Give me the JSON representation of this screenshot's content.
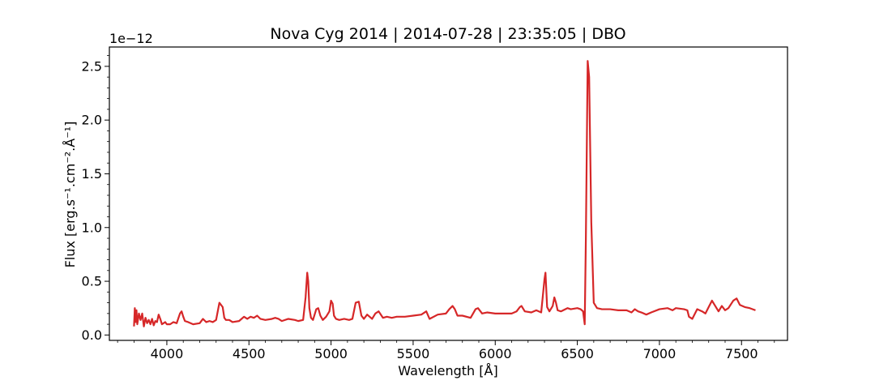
{
  "chart_data": {
    "type": "line",
    "title": "Nova Cyg 2014 | 2014-07-28 | 23:35:05 | DBO",
    "xlabel": "Wavelength [Å]",
    "ylabel": "Flux [erg.s⁻¹.cm⁻².Å⁻¹]",
    "y_offset_text": "1e−12",
    "xlim": [
      3650,
      7780
    ],
    "ylim": [
      -0.05,
      2.68
    ],
    "xticks": [
      4000,
      4500,
      5000,
      5500,
      6000,
      6500,
      7000,
      7500
    ],
    "xtick_labels": [
      "4000",
      "4500",
      "5000",
      "5500",
      "6000",
      "6500",
      "7000",
      "7500"
    ],
    "yticks": [
      0.0,
      0.5,
      1.0,
      1.5,
      2.0,
      2.5
    ],
    "ytick_labels": [
      "0.0",
      "0.5",
      "1.0",
      "1.5",
      "2.0",
      "2.5"
    ],
    "grid": false,
    "color": "#d62728",
    "series": [
      {
        "x": [
          3800,
          3805,
          3810,
          3815,
          3820,
          3830,
          3840,
          3850,
          3860,
          3870,
          3880,
          3890,
          3900,
          3910,
          3920,
          3930,
          3940,
          3950,
          3960,
          3970,
          3980,
          3990,
          4000,
          4020,
          4040,
          4060,
          4080,
          4090,
          4100,
          4110,
          4130,
          4160,
          4200,
          4220,
          4240,
          4260,
          4280,
          4300,
          4320,
          4340,
          4350,
          4360,
          4380,
          4400,
          4440,
          4470,
          4490,
          4510,
          4530,
          4550,
          4570,
          4600,
          4640,
          4660,
          4680,
          4700,
          4740,
          4780,
          4800,
          4830,
          4845,
          4855,
          4861,
          4868,
          4878,
          4890,
          4910,
          4922,
          4935,
          4950,
          4970,
          4990,
          5000,
          5010,
          5018,
          5030,
          5050,
          5080,
          5110,
          5130,
          5150,
          5169,
          5185,
          5200,
          5220,
          5250,
          5270,
          5290,
          5316,
          5340,
          5370,
          5400,
          5450,
          5500,
          5550,
          5580,
          5600,
          5650,
          5700,
          5720,
          5740,
          5754,
          5770,
          5800,
          5850,
          5880,
          5895,
          5920,
          5950,
          6000,
          6050,
          6100,
          6130,
          6150,
          6160,
          6180,
          6220,
          6250,
          6280,
          6300,
          6306,
          6316,
          6330,
          6350,
          6360,
          6370,
          6380,
          6400,
          6440,
          6460,
          6500,
          6520,
          6535,
          6545,
          6552,
          6563,
          6572,
          6585,
          6600,
          6620,
          6650,
          6700,
          6750,
          6800,
          6830,
          6850,
          6870,
          6890,
          6920,
          6950,
          7000,
          7050,
          7080,
          7100,
          7150,
          7170,
          7180,
          7200,
          7230,
          7260,
          7280,
          7300,
          7320,
          7340,
          7360,
          7380,
          7400,
          7420,
          7450,
          7470,
          7490,
          7520,
          7550,
          7585
        ],
        "y": [
          0.08,
          0.25,
          0.12,
          0.23,
          0.1,
          0.2,
          0.14,
          0.2,
          0.08,
          0.16,
          0.11,
          0.14,
          0.1,
          0.15,
          0.09,
          0.13,
          0.12,
          0.19,
          0.15,
          0.1,
          0.11,
          0.12,
          0.1,
          0.1,
          0.12,
          0.11,
          0.2,
          0.22,
          0.17,
          0.13,
          0.12,
          0.1,
          0.11,
          0.15,
          0.12,
          0.13,
          0.12,
          0.14,
          0.3,
          0.26,
          0.16,
          0.14,
          0.14,
          0.12,
          0.13,
          0.17,
          0.15,
          0.17,
          0.16,
          0.18,
          0.15,
          0.14,
          0.15,
          0.16,
          0.15,
          0.13,
          0.15,
          0.14,
          0.13,
          0.14,
          0.35,
          0.58,
          0.5,
          0.25,
          0.16,
          0.14,
          0.24,
          0.25,
          0.18,
          0.14,
          0.17,
          0.22,
          0.32,
          0.29,
          0.18,
          0.15,
          0.14,
          0.15,
          0.14,
          0.15,
          0.3,
          0.31,
          0.18,
          0.15,
          0.19,
          0.15,
          0.2,
          0.22,
          0.16,
          0.17,
          0.16,
          0.17,
          0.17,
          0.18,
          0.19,
          0.22,
          0.15,
          0.19,
          0.2,
          0.24,
          0.27,
          0.24,
          0.18,
          0.18,
          0.16,
          0.24,
          0.25,
          0.2,
          0.21,
          0.2,
          0.2,
          0.2,
          0.22,
          0.26,
          0.27,
          0.22,
          0.21,
          0.23,
          0.21,
          0.52,
          0.58,
          0.26,
          0.22,
          0.27,
          0.35,
          0.3,
          0.23,
          0.22,
          0.25,
          0.24,
          0.25,
          0.24,
          0.22,
          0.1,
          0.9,
          2.55,
          2.4,
          1.05,
          0.3,
          0.25,
          0.24,
          0.24,
          0.23,
          0.23,
          0.21,
          0.24,
          0.22,
          0.21,
          0.19,
          0.21,
          0.24,
          0.25,
          0.23,
          0.25,
          0.24,
          0.23,
          0.17,
          0.15,
          0.24,
          0.22,
          0.2,
          0.26,
          0.32,
          0.27,
          0.22,
          0.27,
          0.23,
          0.25,
          0.32,
          0.34,
          0.28,
          0.26,
          0.25,
          0.23
        ]
      }
    ]
  }
}
